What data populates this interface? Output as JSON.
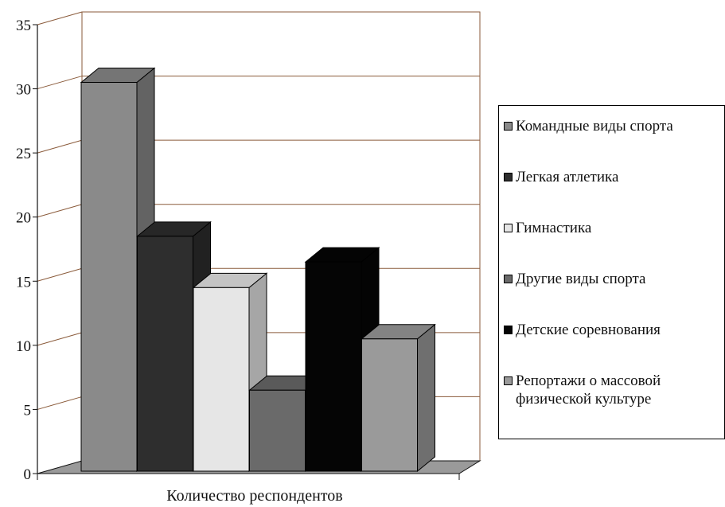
{
  "chart_data": {
    "type": "bar",
    "xlabel": "Количество респондентов",
    "ylabel": "",
    "ylim": [
      0,
      35
    ],
    "yticks": [
      0,
      5,
      10,
      15,
      20,
      25,
      30,
      35
    ],
    "grid": true,
    "legend_position": "right",
    "categories": [
      "Количество респондентов"
    ],
    "series": [
      {
        "name": "Командные виды спорта",
        "values": [
          30.5
        ],
        "color": "#8a8a8a"
      },
      {
        "name": "Легкая атлетика",
        "values": [
          18.5
        ],
        "color": "#2e2e2e"
      },
      {
        "name": "Гимнастика",
        "values": [
          14.5
        ],
        "color": "#e6e6e6"
      },
      {
        "name": "Другие виды спорта",
        "values": [
          6.5
        ],
        "color": "#6a6a6a"
      },
      {
        "name": "Детские соревнования",
        "values": [
          16.5
        ],
        "color": "#050505"
      },
      {
        "name": "Репортажи о массовой физической культуре",
        "values": [
          10.5
        ],
        "color": "#9a9a9a"
      }
    ]
  }
}
